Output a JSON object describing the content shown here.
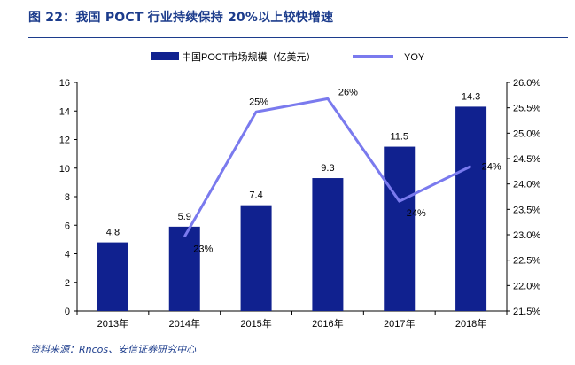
{
  "title": "图 22：我国 POCT 行业持续保持 20%以上较快增速",
  "source": "资料来源：Rncos、安信证券研究中心",
  "colors": {
    "bar": "#10218f",
    "line": "#7a7aee",
    "title": "#1c3c8c"
  },
  "chart_data": {
    "type": "bar",
    "categories": [
      "2013年",
      "2014年",
      "2015年",
      "2016年",
      "2017年",
      "2018年"
    ],
    "series": [
      {
        "name": "中国POCT市场规模（亿美元）",
        "type": "bar",
        "axis": "left",
        "values": [
          4.8,
          5.9,
          7.4,
          9.3,
          11.5,
          14.3
        ],
        "labels": [
          "4.8",
          "5.9",
          "7.4",
          "9.3",
          "11.5",
          "14.3"
        ]
      },
      {
        "name": "YOY",
        "type": "line",
        "axis": "right",
        "values": [
          null,
          0.2296,
          0.2542,
          0.2568,
          0.2366,
          0.2435
        ],
        "labels": [
          "",
          "23%",
          "25%",
          "26%",
          "24%",
          "24%"
        ]
      }
    ],
    "y_left": {
      "min": 0,
      "max": 16,
      "ticks": [
        "0",
        "2",
        "4",
        "6",
        "8",
        "10",
        "12",
        "14",
        "16"
      ]
    },
    "y_right": {
      "min": 0.215,
      "max": 0.26,
      "ticks": [
        "21.5%",
        "22.0%",
        "22.5%",
        "23.0%",
        "23.5%",
        "24.0%",
        "24.5%",
        "25.0%",
        "25.5%",
        "26.0%"
      ]
    },
    "legend": "top-center",
    "grid": false
  }
}
